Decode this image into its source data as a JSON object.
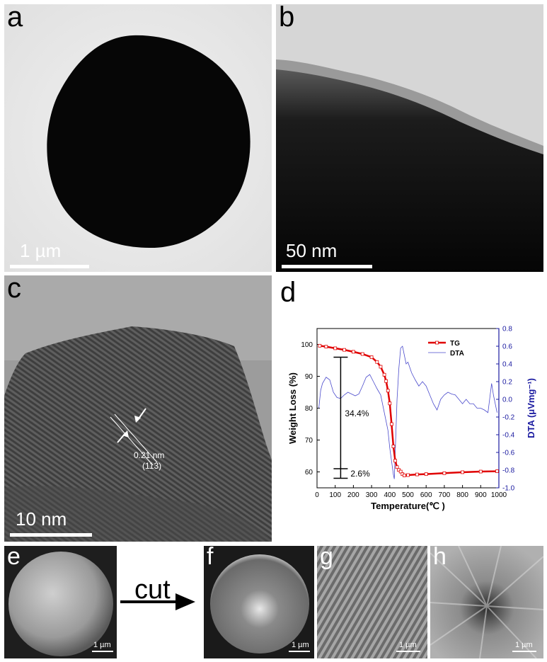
{
  "panels": {
    "a": {
      "label": "a",
      "scale": "1 µm"
    },
    "b": {
      "label": "b",
      "scale": "50 nm"
    },
    "c": {
      "label": "c",
      "scale": "10 nm",
      "spacing": "0.21 nm",
      "plane": "(113)"
    },
    "d": {
      "label": "d"
    },
    "e": {
      "label": "e",
      "scale": "1 µm"
    },
    "f": {
      "label": "f",
      "scale": "1 µm"
    },
    "g": {
      "label": "g",
      "scale": "1 µm"
    },
    "h": {
      "label": "h",
      "scale": "1 µm"
    },
    "cut": {
      "text": "cut"
    }
  },
  "chart_data": {
    "type": "line",
    "xlabel": "Temperature(℃ )",
    "ylabel": "Weight Loss (%)",
    "y2label": "DTA (μVmg⁻¹)",
    "xlim": [
      0,
      1000
    ],
    "ylim": [
      55,
      105
    ],
    "y2lim": [
      -1.0,
      0.8
    ],
    "xticks": [
      "0",
      "100",
      "200",
      "300",
      "400",
      "500",
      "600",
      "700",
      "800",
      "900",
      "1000"
    ],
    "yticks": [
      "60",
      "70",
      "80",
      "90",
      "100"
    ],
    "y2ticks": [
      "-1.0",
      "-0.8",
      "-0.6",
      "-0.4",
      "-0.2",
      "0.0",
      "0.2",
      "0.4",
      "0.6",
      "0.8"
    ],
    "legend": [
      "TG",
      "DTA"
    ],
    "annotations": [
      "34.4%",
      "2.6%"
    ],
    "series": [
      {
        "name": "TG",
        "axis": "left",
        "x": [
          15,
          50,
          100,
          150,
          200,
          250,
          300,
          330,
          350,
          370,
          380,
          390,
          400,
          410,
          420,
          430,
          440,
          450,
          460,
          470,
          480,
          500,
          550,
          600,
          700,
          800,
          900,
          990
        ],
        "y": [
          99.6,
          99.3,
          98.8,
          98.3,
          97.7,
          97.0,
          96.0,
          94.5,
          93.0,
          90.5,
          88.5,
          85.5,
          81.5,
          75,
          68,
          63.5,
          61.5,
          60.6,
          60.1,
          59.3,
          58.9,
          59.0,
          59.2,
          59.3,
          59.6,
          59.9,
          60.1,
          60.2
        ]
      },
      {
        "name": "DTA",
        "axis": "right",
        "x": [
          10,
          20,
          30,
          50,
          70,
          90,
          110,
          130,
          150,
          170,
          190,
          210,
          230,
          250,
          270,
          290,
          310,
          330,
          350,
          370,
          390,
          400,
          410,
          420,
          425,
          430,
          440,
          450,
          460,
          470,
          480,
          490,
          500,
          520,
          540,
          560,
          580,
          600,
          620,
          640,
          660,
          680,
          700,
          720,
          740,
          760,
          780,
          800,
          820,
          840,
          860,
          880,
          900,
          920,
          940,
          960,
          970,
          980,
          990
        ],
        "y": [
          -0.1,
          0.1,
          0.18,
          0.25,
          0.22,
          0.08,
          0.02,
          0.01,
          0.05,
          0.08,
          0.06,
          0.04,
          0.06,
          0.15,
          0.25,
          0.28,
          0.2,
          0.12,
          0.05,
          -0.15,
          -0.35,
          -0.55,
          -0.7,
          -0.85,
          -0.9,
          -0.6,
          0.0,
          0.35,
          0.58,
          0.6,
          0.5,
          0.4,
          0.42,
          0.3,
          0.22,
          0.15,
          0.2,
          0.15,
          0.05,
          -0.05,
          -0.12,
          0.0,
          0.05,
          0.08,
          0.06,
          0.05,
          0.0,
          -0.05,
          0.0,
          -0.05,
          -0.05,
          -0.1,
          -0.1,
          -0.12,
          -0.15,
          0.18,
          0.05,
          -0.05,
          -0.15
        ]
      }
    ]
  }
}
